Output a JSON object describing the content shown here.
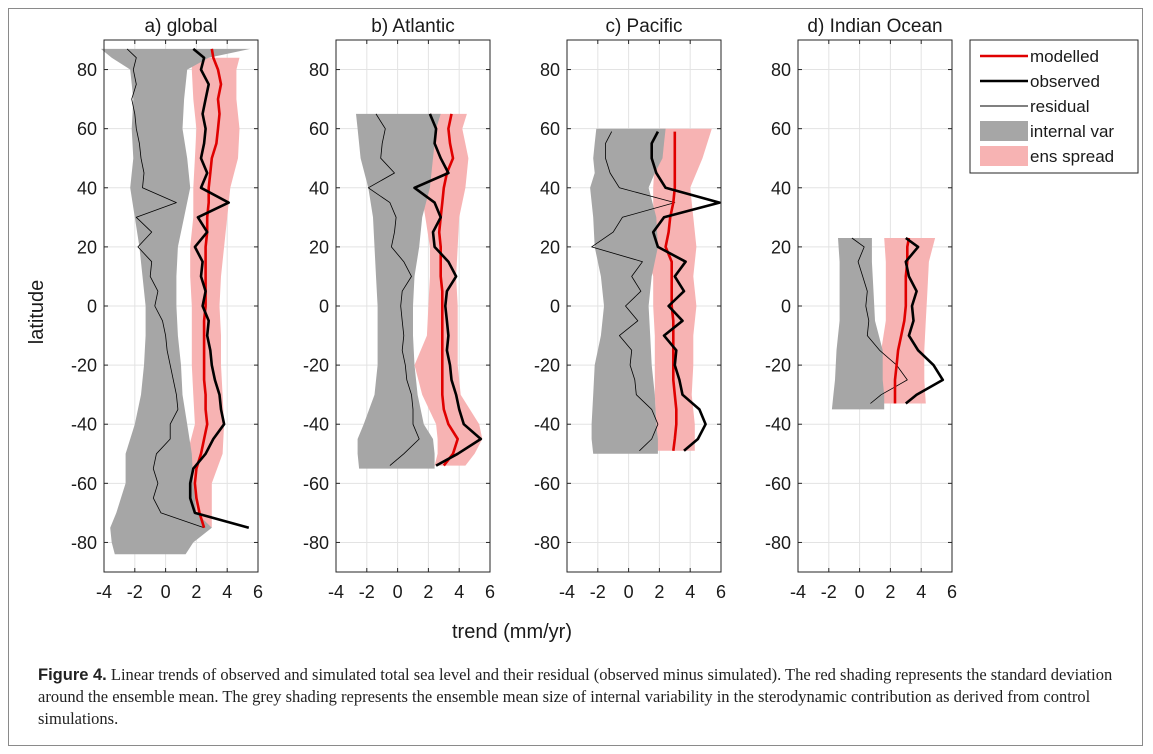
{
  "chart_data": {
    "type": "line",
    "xlabel": "trend (mm/yr)",
    "ylabel": "latitude",
    "xlim": [
      -4,
      6
    ],
    "ylim": [
      -90,
      90
    ],
    "xticks": [
      "-4",
      "-2",
      "0",
      "2",
      "4",
      "6"
    ],
    "yticks": [
      "80",
      "60",
      "40",
      "20",
      "0",
      "-20",
      "-40",
      "-60",
      "-80"
    ],
    "grid": true,
    "legend_position": "top-right",
    "legend": [
      {
        "label": "modelled",
        "color": "#e00000",
        "kind": "thick-line"
      },
      {
        "label": "observed",
        "color": "#000000",
        "kind": "thick-line"
      },
      {
        "label": "residual",
        "color": "#000000",
        "kind": "thin-line"
      },
      {
        "label": "internal var",
        "color": "#a6a6a6",
        "kind": "patch"
      },
      {
        "label": "ens spread",
        "color": "#f7b3b3",
        "kind": "patch"
      }
    ],
    "panels": [
      {
        "title": "a) global",
        "lat": [
          87,
          84,
          80,
          75,
          70,
          65,
          60,
          55,
          50,
          45,
          40,
          35,
          30,
          25,
          20,
          15,
          10,
          5,
          0,
          -5,
          -10,
          -15,
          -20,
          -25,
          -30,
          -35,
          -40,
          -45,
          -50,
          -55,
          -60,
          -65,
          -70,
          -75
        ],
        "internal_var": {
          "lat": [
            87,
            84,
            80,
            70,
            60,
            50,
            40,
            30,
            20,
            10,
            0,
            -10,
            -20,
            -30,
            -40,
            -50,
            -60,
            -70,
            -75,
            -80,
            -84
          ],
          "lower": [
            -4.2,
            -3.5,
            -2.3,
            -2.1,
            -2.2,
            -2.1,
            -2.3,
            -2.0,
            -1.7,
            -1.5,
            -1.3,
            -1.3,
            -1.4,
            -1.6,
            -2.0,
            -2.6,
            -2.6,
            -3.2,
            -3.6,
            -3.5,
            -3.3
          ],
          "upper": [
            5.5,
            2.8,
            1.4,
            1.2,
            1.1,
            1.4,
            1.6,
            1.2,
            0.8,
            0.7,
            0.7,
            0.8,
            1.0,
            1.1,
            1.4,
            1.7,
            1.8,
            2.0,
            3.0,
            1.8,
            1.3
          ]
        },
        "ens_spread": {
          "lat": [
            84,
            80,
            70,
            60,
            50,
            40,
            30,
            20,
            10,
            0,
            -10,
            -20,
            -30,
            -40,
            -50,
            -60,
            -70,
            -75
          ],
          "lower": [
            1.7,
            1.7,
            1.8,
            2.0,
            1.9,
            1.8,
            1.8,
            1.6,
            1.6,
            1.7,
            1.7,
            1.7,
            1.8,
            1.9,
            1.4,
            1.2,
            1.3,
            1.5
          ],
          "upper": [
            4.8,
            4.6,
            4.6,
            4.8,
            4.7,
            4.2,
            4.0,
            3.8,
            3.6,
            3.5,
            3.6,
            3.6,
            3.7,
            3.8,
            3.7,
            3.0,
            3.0,
            3.0
          ]
        },
        "modelled": [
          3.0,
          3.1,
          3.4,
          3.6,
          3.4,
          3.5,
          3.4,
          3.3,
          3.0,
          2.9,
          2.8,
          2.8,
          2.7,
          2.7,
          2.6,
          2.6,
          2.6,
          2.6,
          2.6,
          2.5,
          2.5,
          2.5,
          2.5,
          2.5,
          2.6,
          2.6,
          2.7,
          2.5,
          2.3,
          2.0,
          1.9,
          2.0,
          2.2,
          2.5
        ],
        "observed": [
          1.8,
          2.5,
          2.3,
          2.8,
          2.6,
          2.4,
          2.6,
          2.5,
          2.3,
          2.7,
          2.3,
          4.1,
          2.1,
          2.7,
          1.9,
          2.4,
          2.3,
          2.6,
          2.4,
          2.8,
          2.7,
          2.9,
          3.0,
          3.2,
          3.5,
          3.6,
          3.8,
          3.1,
          2.6,
          1.8,
          1.6,
          1.6,
          1.9,
          5.4
        ],
        "residual": [
          -2.5,
          -1.9,
          -2.1,
          -1.9,
          -2.2,
          -2.0,
          -1.9,
          -1.7,
          -1.6,
          -1.4,
          -1.5,
          0.7,
          -1.9,
          -0.9,
          -1.8,
          -0.9,
          -1.0,
          -0.5,
          -0.7,
          -0.2,
          0.0,
          0.1,
          0.3,
          0.5,
          0.7,
          0.8,
          0.3,
          0.3,
          -0.6,
          -0.8,
          -0.5,
          -0.8,
          -0.3,
          2.5
        ]
      },
      {
        "title": "b) Atlantic",
        "lat": [
          65,
          60,
          55,
          50,
          45,
          40,
          35,
          30,
          25,
          20,
          15,
          10,
          5,
          0,
          -5,
          -10,
          -15,
          -20,
          -25,
          -30,
          -35,
          -40,
          -45,
          -50,
          -54
        ],
        "internal_var": {
          "lat": [
            65,
            60,
            50,
            40,
            30,
            20,
            10,
            0,
            -10,
            -20,
            -30,
            -40,
            -45,
            -50,
            -55
          ],
          "lower": [
            -2.7,
            -2.6,
            -2.4,
            -1.9,
            -1.6,
            -1.5,
            -1.4,
            -1.3,
            -1.3,
            -1.3,
            -1.5,
            -2.2,
            -2.6,
            -2.6,
            -2.5
          ],
          "upper": [
            2.8,
            2.5,
            2.3,
            2.1,
            1.6,
            1.4,
            1.1,
            1.0,
            1.0,
            1.1,
            1.3,
            1.7,
            2.3,
            2.4,
            2.4
          ]
        },
        "ens_spread": {
          "lat": [
            65,
            60,
            50,
            40,
            30,
            20,
            10,
            0,
            -10,
            -20,
            -30,
            -40,
            -45,
            -50,
            -54
          ],
          "lower": [
            2.0,
            2.0,
            1.9,
            1.5,
            1.8,
            2.1,
            2.1,
            2.0,
            1.9,
            1.1,
            1.6,
            2.5,
            2.6,
            2.6,
            2.4
          ],
          "upper": [
            4.5,
            4.2,
            4.6,
            4.4,
            4.0,
            3.9,
            3.8,
            3.9,
            3.9,
            3.9,
            4.1,
            5.3,
            5.5,
            5.0,
            4.4
          ]
        },
        "modelled": [
          3.5,
          3.3,
          3.4,
          3.6,
          3.2,
          3.0,
          2.9,
          2.8,
          2.7,
          2.8,
          2.8,
          2.8,
          2.9,
          2.9,
          2.9,
          2.9,
          2.9,
          2.9,
          2.9,
          2.9,
          3.0,
          3.3,
          3.9,
          3.6,
          3.0
        ],
        "observed": [
          2.1,
          2.5,
          2.4,
          2.8,
          3.3,
          1.1,
          2.4,
          2.8,
          2.3,
          2.4,
          3.3,
          3.8,
          3.2,
          3.1,
          3.2,
          3.3,
          3.2,
          3.4,
          3.5,
          3.8,
          4.0,
          4.3,
          5.4,
          3.9,
          2.5
        ],
        "residual": [
          -1.4,
          -0.8,
          -1.0,
          -1.1,
          -0.2,
          -1.9,
          -0.5,
          -0.1,
          -0.2,
          -0.4,
          0.4,
          0.9,
          0.3,
          0.2,
          0.3,
          0.4,
          0.3,
          0.5,
          0.6,
          0.9,
          1.0,
          1.0,
          1.4,
          0.4,
          -0.5
        ]
      },
      {
        "title": "c) Pacific",
        "lat": [
          59,
          55,
          50,
          45,
          40,
          35,
          30,
          25,
          20,
          15,
          10,
          5,
          0,
          -5,
          -10,
          -15,
          -20,
          -25,
          -30,
          -35,
          -40,
          -45,
          -49
        ],
        "internal_var": {
          "lat": [
            60,
            55,
            50,
            45,
            40,
            30,
            20,
            10,
            0,
            -10,
            -20,
            -30,
            -40,
            -45,
            -50
          ],
          "lower": [
            -2.1,
            -2.2,
            -2.3,
            -2.2,
            -2.5,
            -2.3,
            -2.2,
            -1.8,
            -1.6,
            -1.8,
            -2.2,
            -2.3,
            -2.4,
            -2.4,
            -2.3
          ],
          "upper": [
            2.4,
            2.3,
            2.2,
            1.7,
            1.3,
            1.8,
            1.9,
            1.5,
            1.3,
            1.4,
            1.5,
            1.7,
            1.8,
            1.9,
            1.9
          ]
        },
        "ens_spread": {
          "lat": [
            60,
            50,
            40,
            30,
            20,
            10,
            0,
            -10,
            -20,
            -30,
            -40,
            -49
          ],
          "lower": [
            2.0,
            1.7,
            1.6,
            1.6,
            1.1,
            1.6,
            1.6,
            1.7,
            1.7,
            1.7,
            1.8,
            1.8
          ],
          "upper": [
            5.4,
            4.8,
            4.0,
            4.2,
            4.4,
            4.2,
            4.4,
            4.2,
            4.2,
            4.1,
            4.3,
            4.3
          ]
        },
        "modelled": [
          3.0,
          3.0,
          3.0,
          3.0,
          3.0,
          2.9,
          2.7,
          2.6,
          2.4,
          2.8,
          2.8,
          2.8,
          2.8,
          2.9,
          2.9,
          2.9,
          2.9,
          2.9,
          3.0,
          3.1,
          3.1,
          3.0,
          2.9
        ],
        "observed": [
          1.9,
          1.5,
          1.5,
          1.8,
          2.4,
          5.9,
          2.3,
          1.6,
          1.9,
          3.7,
          3.0,
          3.6,
          2.6,
          3.5,
          2.3,
          3.1,
          3.0,
          3.3,
          3.5,
          4.6,
          5.0,
          4.5,
          3.6
        ],
        "residual": [
          -1.1,
          -1.5,
          -1.5,
          -1.2,
          -0.6,
          3.0,
          -0.4,
          -1.0,
          -2.4,
          0.9,
          0.2,
          0.8,
          -0.2,
          0.6,
          -0.6,
          0.2,
          0.1,
          0.4,
          0.5,
          1.5,
          1.9,
          1.5,
          0.7
        ]
      },
      {
        "title": "d) Indian Ocean",
        "lat": [
          23,
          20,
          15,
          10,
          5,
          0,
          -5,
          -10,
          -15,
          -20,
          -25,
          -30,
          -33
        ],
        "internal_var": {
          "lat": [
            23,
            15,
            5,
            -5,
            -15,
            -25,
            -30,
            -35
          ],
          "lower": [
            -1.4,
            -1.3,
            -1.3,
            -1.3,
            -1.5,
            -1.6,
            -1.7,
            -1.8
          ],
          "upper": [
            0.8,
            0.8,
            0.9,
            1.0,
            1.5,
            1.5,
            1.6,
            1.6
          ]
        },
        "ens_spread": {
          "lat": [
            23,
            15,
            5,
            -5,
            -15,
            -25,
            -33
          ],
          "lower": [
            1.6,
            1.7,
            1.7,
            1.7,
            1.4,
            1.2,
            1.2
          ],
          "upper": [
            4.9,
            4.5,
            4.4,
            4.3,
            4.2,
            4.2,
            4.3
          ]
        },
        "modelled": [
          3.2,
          3.1,
          3.1,
          3.0,
          3.0,
          3.0,
          2.9,
          2.7,
          2.5,
          2.4,
          2.3,
          2.3,
          2.3
        ],
        "observed": [
          3.0,
          3.8,
          3.0,
          3.2,
          3.7,
          3.4,
          3.5,
          3.2,
          3.8,
          4.8,
          5.4,
          3.7,
          3.0
        ],
        "residual": [
          -0.5,
          0.3,
          -0.1,
          0.2,
          0.5,
          0.4,
          0.6,
          0.5,
          1.3,
          2.4,
          3.1,
          1.4,
          0.7
        ]
      }
    ]
  },
  "caption": {
    "label": "Figure 4.",
    "text": " Linear trends of observed and simulated total sea level and their residual (observed minus simulated). The red shading represents the standard deviation around the ensemble mean. The grey shading represents the ensemble mean size of internal variability in the sterodynamic contribution as derived from control simulations."
  }
}
